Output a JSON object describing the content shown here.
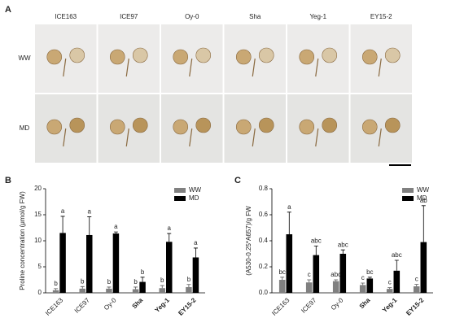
{
  "panel_a": {
    "label": "A",
    "columns": [
      "ICE163",
      "ICE97",
      "Oy-0",
      "Sha",
      "Yeg-1",
      "EY15-2"
    ],
    "rows": [
      "WW",
      "MD"
    ]
  },
  "chart_data": [
    {
      "type": "bar",
      "panel_label": "B",
      "ylabel": "Proline concentration (μmol/g FW)",
      "categories": [
        "ICE163",
        "ICE97",
        "Oy-0",
        "Sha",
        "Yeg-1",
        "EY15-2"
      ],
      "series": [
        {
          "name": "WW",
          "color": "#808080",
          "values": [
            0.5,
            0.8,
            0.8,
            0.7,
            0.9,
            1.1
          ],
          "errors": [
            0.3,
            0.4,
            0.3,
            0.4,
            0.5,
            0.5
          ],
          "letters": [
            "b",
            "b",
            "b",
            "b",
            "b",
            "b"
          ]
        },
        {
          "name": "MD",
          "color": "#000000",
          "values": [
            11.5,
            11.1,
            11.4,
            2.1,
            9.8,
            6.8
          ],
          "errors": [
            3.2,
            3.5,
            0.3,
            0.9,
            1.6,
            1.8
          ],
          "letters": [
            "a",
            "a",
            "a",
            "b",
            "a",
            "a"
          ]
        }
      ],
      "ylim": [
        0,
        20
      ],
      "yticks": [
        0,
        5,
        10,
        15,
        20
      ],
      "legend": "upper right"
    },
    {
      "type": "bar",
      "panel_label": "C",
      "ylabel": "(A530-0.25*A657)/g FW",
      "categories": [
        "ICE163",
        "ICE97",
        "Oy-0",
        "Sha",
        "Yeg-1",
        "EY15-2"
      ],
      "series": [
        {
          "name": "WW",
          "color": "#808080",
          "values": [
            0.1,
            0.08,
            0.09,
            0.06,
            0.03,
            0.05
          ],
          "errors": [
            0.02,
            0.02,
            0.01,
            0.015,
            0.01,
            0.015
          ],
          "letters": [
            "bc",
            "c",
            "abc",
            "c",
            "c",
            "c"
          ]
        },
        {
          "name": "MD",
          "color": "#000000",
          "values": [
            0.45,
            0.29,
            0.3,
            0.11,
            0.17,
            0.39
          ],
          "errors": [
            0.17,
            0.07,
            0.03,
            0.01,
            0.08,
            0.28
          ],
          "letters": [
            "a",
            "abc",
            "abc",
            "bc",
            "abc",
            "ab"
          ]
        }
      ],
      "ylim": [
        0,
        0.8
      ],
      "yticks": [
        {
          "value": 0,
          "label": "0.0"
        },
        0.2,
        0.4,
        0.6,
        0.8
      ],
      "legend": "upper right"
    }
  ]
}
